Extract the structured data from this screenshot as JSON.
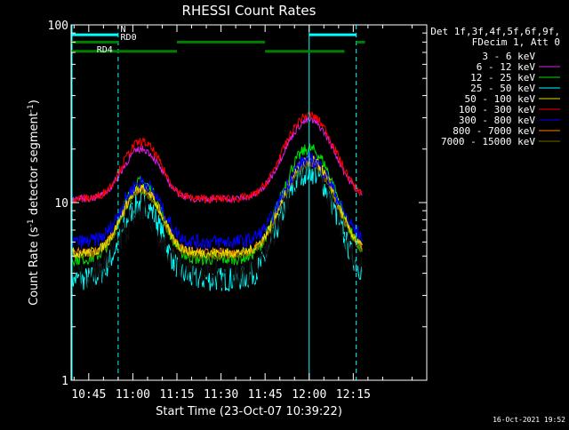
{
  "chart_data": {
    "type": "line",
    "title": "RHESSI Count Rates",
    "xlabel": "Start Time (23-Oct-07 10:39:22)",
    "ylabel_main": "Count Rate (s",
    "ylabel_sup": "-1",
    "ylabel_end": " detector segment",
    "ylabel_sup2": "-1",
    "ylabel_close": ")",
    "yscale": "log",
    "ylim": [
      1,
      100
    ],
    "xlim_minutes": [
      -21,
      100
    ],
    "x_ticks": [
      {
        "label": "10:45",
        "minute": -15
      },
      {
        "label": "11:00",
        "minute": 0
      },
      {
        "label": "11:15",
        "minute": 15
      },
      {
        "label": "11:30",
        "minute": 30
      },
      {
        "label": "11:45",
        "minute": 45
      },
      {
        "label": "12:00",
        "minute": 60
      },
      {
        "label": "12:15",
        "minute": 75
      }
    ],
    "y_ticks": [
      {
        "label": "100",
        "value": 100
      },
      {
        "label": "10",
        "value": 10
      },
      {
        "label": "1",
        "value": 1
      }
    ],
    "legend_header": [
      "Det 1f,3f,4f,5f,6f,9f,",
      "FDecim 1, Att 0"
    ],
    "series": [
      {
        "name": "3 - 6 keV",
        "color": "#000000",
        "peak_minute": [
          3,
          60
        ],
        "base": 4.0,
        "peak": [
          9.0,
          16.0
        ],
        "noise": 0.14
      },
      {
        "name": "6 - 12 keV",
        "color": "#e020e0",
        "peak_minute": [
          3,
          60
        ],
        "base": 10.5,
        "peak": [
          20.0,
          29.0
        ],
        "noise": 0.03
      },
      {
        "name": "12 - 25 keV",
        "color": "#00e000",
        "peak_minute": [
          3,
          60
        ],
        "base": 4.8,
        "peak": [
          13.0,
          20.0
        ],
        "noise": 0.05
      },
      {
        "name": "25 - 50 keV",
        "color": "#00ffff",
        "peak_minute": [
          3,
          60
        ],
        "base": 3.7,
        "peak": [
          10.0,
          15.0
        ],
        "noise": 0.1
      },
      {
        "name": "50 - 100 keV",
        "color": "#e0e000",
        "peak_minute": [
          3,
          60
        ],
        "base": 5.2,
        "peak": [
          12.0,
          17.5
        ],
        "noise": 0.04
      },
      {
        "name": "100 - 300 keV",
        "color": "#ff0000",
        "peak_minute": [
          3,
          60
        ],
        "base": 10.5,
        "peak": [
          22.0,
          31.0
        ],
        "noise": 0.035
      },
      {
        "name": "300 - 800 keV",
        "color": "#0000ff",
        "peak_minute": [
          3,
          60
        ],
        "base": 6.0,
        "peak": [
          13.0,
          17.5
        ],
        "noise": 0.06
      },
      {
        "name": "800 - 7000 keV",
        "color": "#ff8000",
        "peak_minute": [
          3,
          60
        ],
        "base": 5.2,
        "peak": [
          12.0,
          17.0
        ],
        "noise": 0.04
      },
      {
        "name": "7000 - 15000 keV",
        "color": "#6a6a00",
        "peak_minute": [
          3,
          60
        ],
        "base": 5.0,
        "peak": [
          11.5,
          16.5
        ],
        "noise": 0.03
      }
    ],
    "vlines": [
      {
        "minute": -21,
        "style": "solid",
        "color": "#00ffff"
      },
      {
        "minute": -5,
        "style": "dashed",
        "color": "#00ffff"
      },
      {
        "minute": 60,
        "style": "solid",
        "color": "#00ffff"
      },
      {
        "minute": 76,
        "style": "dashed",
        "color": "#00ffff"
      }
    ],
    "flag_bars": [
      {
        "name": "N",
        "color": "#00ffff",
        "value": 88,
        "segments": [
          [
            -21,
            -5
          ],
          [
            60,
            76
          ]
        ]
      },
      {
        "name": "RD0",
        "color": "#008000",
        "value": 80,
        "segments": [
          [
            -21,
            -5
          ],
          [
            76,
            79
          ]
        ]
      },
      {
        "name": "RD0",
        "color": "#008000",
        "value": 80,
        "segments": [
          [
            15,
            45
          ]
        ]
      },
      {
        "name": "RD4",
        "color": "#008000",
        "value": 71,
        "segments": [
          [
            -21,
            -5
          ],
          [
            -5,
            15
          ],
          [
            45,
            72
          ]
        ]
      }
    ],
    "flag_labels": [
      {
        "text": "N",
        "minute": -4.2,
        "value": 91
      },
      {
        "text": "RD0",
        "minute": -4.2,
        "value": 82
      },
      {
        "text": "RD4",
        "minute": -12.3,
        "value": 70
      }
    ]
  },
  "timestamp": "16-Oct-2021 19:52"
}
